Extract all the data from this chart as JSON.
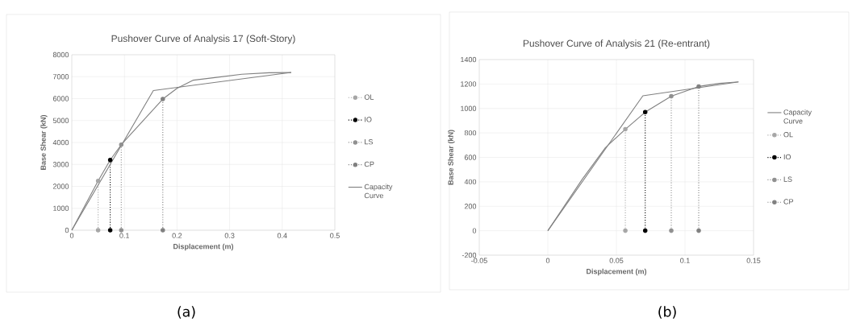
{
  "chart_data": [
    {
      "type": "line",
      "title": "Pushover Curve of Analysis 17 (Soft-Story)",
      "xlabel": "Displacement (m)",
      "ylabel": "Base Shear (kN)",
      "xlim": [
        0,
        0.5
      ],
      "ylim": [
        0,
        8000
      ],
      "xticks": [
        0,
        0.1,
        0.2,
        0.3,
        0.4,
        0.5
      ],
      "yticks": [
        0,
        1000,
        2000,
        3000,
        4000,
        5000,
        6000,
        7000,
        8000
      ],
      "grid": true,
      "legend": "right",
      "annotations": [
        "(a)"
      ],
      "series": [
        {
          "name": "OL",
          "color": "#a6a6a6",
          "marker": "circle",
          "line_style": "dotted",
          "x": [
            0.05,
            0.05
          ],
          "values": [
            0,
            2250
          ]
        },
        {
          "name": "IO",
          "color": "#000000",
          "marker": "circle",
          "line_style": "dotted",
          "x": [
            0.073,
            0.073
          ],
          "values": [
            0,
            3200
          ]
        },
        {
          "name": "LS",
          "color": "#909090",
          "marker": "circle",
          "line_style": "dotted",
          "x": [
            0.094,
            0.094
          ],
          "values": [
            0,
            3900
          ]
        },
        {
          "name": "CP",
          "color": "#808080",
          "marker": "circle",
          "line_style": "dotted",
          "x": [
            0.173,
            0.173
          ],
          "values": [
            0,
            5980
          ]
        },
        {
          "name": "Capacity Curve",
          "color": "#808080",
          "marker": "none",
          "line_style": "solid",
          "x": [
            0,
            0.05,
            0.073,
            0.094,
            0.173,
            0.2,
            0.231,
            0.272,
            0.323,
            0.375,
            0.417
          ],
          "values": [
            0,
            2250,
            3200,
            3900,
            5980,
            6470,
            6840,
            6960,
            7110,
            7180,
            7190
          ]
        },
        {
          "color": "#808080",
          "marker": "none",
          "line_style": "solid",
          "x": [
            0,
            0.155,
            0.417
          ],
          "values": [
            0,
            6370,
            7190
          ]
        }
      ]
    },
    {
      "type": "line",
      "title": "Pushover Curve of Analysis 21 (Re-entrant)",
      "xlabel": "Displacement (m)",
      "ylabel": "Base Shear (kN)",
      "xlim": [
        -0.05,
        0.15
      ],
      "ylim": [
        -200,
        1400
      ],
      "xticks": [
        -0.05,
        0,
        0.05,
        0.1,
        0.15
      ],
      "yticks": [
        -200,
        0,
        200,
        400,
        600,
        800,
        1000,
        1200,
        1400
      ],
      "grid": true,
      "legend": "right",
      "annotations": [
        "(b)"
      ],
      "series": [
        {
          "name": "Capacity Curve",
          "color": "#808080",
          "marker": "none",
          "line_style": "solid",
          "x": [
            0,
            0.025,
            0.042,
            0.0565,
            0.071,
            0.09,
            0.11,
            0.125,
            0.139
          ],
          "values": [
            0,
            420,
            680,
            830,
            970,
            1100,
            1180,
            1205,
            1217
          ]
        },
        {
          "name": "OL",
          "color": "#a6a6a6",
          "marker": "circle",
          "line_style": "dotted",
          "x": [
            0.0565,
            0.0565
          ],
          "values": [
            0,
            830
          ]
        },
        {
          "name": "IO",
          "color": "#000000",
          "marker": "circle",
          "line_style": "dotted",
          "x": [
            0.071,
            0.071
          ],
          "values": [
            0,
            970
          ]
        },
        {
          "name": "LS",
          "color": "#909090",
          "marker": "circle",
          "line_style": "dotted",
          "x": [
            0.09,
            0.09
          ],
          "values": [
            0,
            1100
          ]
        },
        {
          "name": "CP",
          "color": "#808080",
          "marker": "circle",
          "line_style": "dotted",
          "x": [
            0.11,
            0.11
          ],
          "values": [
            0,
            1180
          ]
        },
        {
          "color": "#808080",
          "marker": "none",
          "line_style": "solid",
          "x": [
            0,
            0.0693,
            0.139
          ],
          "values": [
            0,
            1104,
            1217
          ]
        }
      ]
    }
  ]
}
